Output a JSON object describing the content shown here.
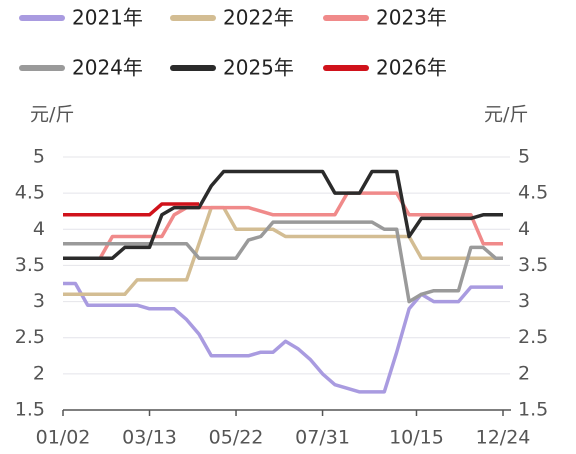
{
  "chart_data": {
    "type": "line",
    "y_label": "元/斤",
    "y2_label": "元/斤",
    "x": [
      "01/02",
      "01/12",
      "01/22",
      "02/01",
      "02/11",
      "02/21",
      "03/03",
      "03/13",
      "03/23",
      "04/02",
      "04/12",
      "04/22",
      "05/02",
      "05/12",
      "05/22",
      "06/01",
      "06/11",
      "06/21",
      "07/01",
      "07/11",
      "07/21",
      "07/31",
      "08/10",
      "08/20",
      "08/30",
      "09/09",
      "09/19",
      "09/29",
      "10/09",
      "10/19",
      "10/29",
      "11/08",
      "11/18",
      "11/28",
      "12/08",
      "12/18",
      "12/24"
    ],
    "xlim": [
      "01/02",
      "12/24"
    ],
    "xticks": [
      "01/02",
      "03/13",
      "05/22",
      "07/31",
      "10/15",
      "12/24"
    ],
    "ylim": [
      1.5,
      5
    ],
    "yticks": [
      1.5,
      2,
      2.5,
      3,
      3.5,
      4,
      4.5,
      5
    ],
    "y2lim": [
      1.5,
      5
    ],
    "y2ticks": [
      1.5,
      2,
      2.5,
      3,
      3.5,
      4,
      4.5,
      5
    ],
    "grid": true,
    "legend": "top",
    "series": [
      {
        "name": "2021年",
        "color": "#a99be0",
        "values": [
          3.25,
          3.25,
          2.95,
          2.95,
          2.95,
          2.95,
          2.95,
          2.9,
          2.9,
          2.9,
          2.75,
          2.55,
          2.25,
          2.25,
          2.25,
          2.25,
          2.3,
          2.3,
          2.45,
          2.35,
          2.2,
          2.0,
          1.85,
          1.8,
          1.75,
          1.75,
          1.75,
          2.3,
          2.9,
          3.1,
          3.0,
          3.0,
          3.0,
          3.2,
          3.2,
          3.2,
          3.2
        ]
      },
      {
        "name": "2022年",
        "color": "#d3bd93",
        "values": [
          3.1,
          3.1,
          3.1,
          3.1,
          3.1,
          3.1,
          3.3,
          3.3,
          3.3,
          3.3,
          3.3,
          3.8,
          4.3,
          4.3,
          4.0,
          4.0,
          4.0,
          4.0,
          3.9,
          3.9,
          3.9,
          3.9,
          3.9,
          3.9,
          3.9,
          3.9,
          3.9,
          3.9,
          3.9,
          3.6,
          3.6,
          3.6,
          3.6,
          3.6,
          3.6,
          3.6,
          3.6
        ]
      },
      {
        "name": "2023年",
        "color": "#f08a8a",
        "values": [
          3.6,
          3.6,
          3.6,
          3.6,
          3.9,
          3.9,
          3.9,
          3.9,
          3.9,
          4.2,
          4.3,
          4.3,
          4.3,
          4.3,
          4.3,
          4.3,
          4.25,
          4.2,
          4.2,
          4.2,
          4.2,
          4.2,
          4.2,
          4.5,
          4.5,
          4.5,
          4.5,
          4.5,
          4.2,
          4.2,
          4.2,
          4.2,
          4.2,
          4.2,
          3.8,
          3.8,
          3.8
        ]
      },
      {
        "name": "2024年",
        "color": "#9a9a9a",
        "values": [
          3.8,
          3.8,
          3.8,
          3.8,
          3.8,
          3.8,
          3.8,
          3.8,
          3.8,
          3.8,
          3.8,
          3.6,
          3.6,
          3.6,
          3.6,
          3.85,
          3.9,
          4.1,
          4.1,
          4.1,
          4.1,
          4.1,
          4.1,
          4.1,
          4.1,
          4.1,
          4.0,
          4.0,
          3.0,
          3.1,
          3.15,
          3.15,
          3.15,
          3.75,
          3.75,
          3.6,
          3.6
        ]
      },
      {
        "name": "2025年",
        "color": "#2b2b2b",
        "values": [
          3.6,
          3.6,
          3.6,
          3.6,
          3.6,
          3.75,
          3.75,
          3.75,
          4.2,
          4.3,
          4.3,
          4.3,
          4.6,
          4.8,
          4.8,
          4.8,
          4.8,
          4.8,
          4.8,
          4.8,
          4.8,
          4.8,
          4.5,
          4.5,
          4.5,
          4.8,
          4.8,
          4.8,
          3.9,
          4.15,
          4.15,
          4.15,
          4.15,
          4.15,
          4.2,
          4.2,
          4.2
        ]
      },
      {
        "name": "2026年",
        "color": "#d0121b",
        "values": [
          4.2,
          4.2,
          4.2,
          4.2,
          4.2,
          4.2,
          4.2,
          4.2,
          4.35,
          4.35,
          4.35,
          4.35,
          null,
          null,
          null,
          null,
          null,
          null,
          null,
          null,
          null,
          null,
          null,
          null,
          null,
          null,
          null,
          null,
          null,
          null,
          null,
          null,
          null,
          null,
          null,
          null,
          null
        ]
      }
    ]
  }
}
